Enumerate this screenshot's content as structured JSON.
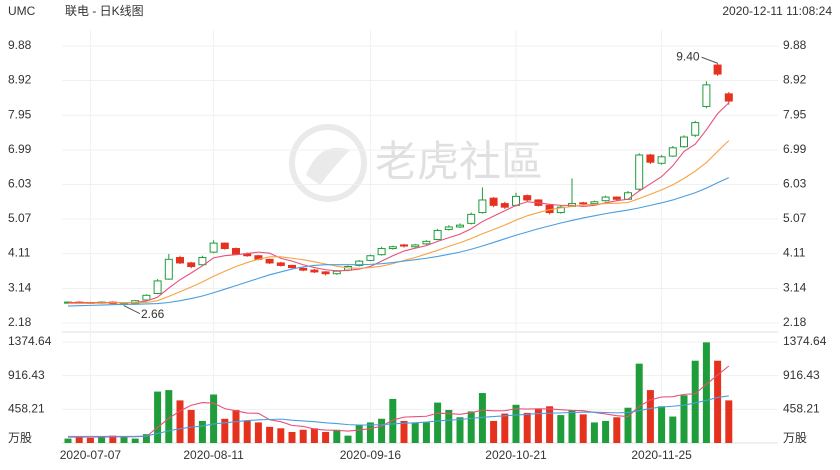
{
  "chart_data": {
    "type": "candlestick",
    "symbol": "UMC",
    "title": "联电 - 日K线图",
    "timestamp": "2020-12-11 11:08:24",
    "watermark": "老虎社區",
    "grid": true,
    "up_color": "#1f9d3a",
    "down_color": "#e5321f",
    "categories": [
      null,
      null,
      "2020-07-07",
      null,
      null,
      null,
      null,
      null,
      null,
      null,
      null,
      null,
      null,
      "2020-08-11",
      null,
      null,
      null,
      null,
      null,
      null,
      null,
      null,
      null,
      null,
      null,
      null,
      null,
      "2020-09-16",
      null,
      null,
      null,
      null,
      null,
      null,
      null,
      null,
      null,
      null,
      null,
      null,
      "2020-10-21",
      null,
      null,
      null,
      null,
      null,
      null,
      null,
      null,
      null,
      null,
      null,
      null,
      "2020-11-25",
      null,
      null,
      null,
      null,
      null,
      null
    ],
    "open": [
      2.74,
      2.76,
      2.75,
      2.74,
      2.76,
      2.7,
      2.72,
      2.82,
      3.0,
      3.4,
      4.0,
      3.85,
      3.8,
      4.15,
      4.4,
      4.25,
      4.1,
      4.05,
      3.95,
      3.85,
      3.78,
      3.7,
      3.65,
      3.6,
      3.55,
      3.65,
      3.78,
      3.92,
      4.08,
      4.25,
      4.35,
      4.3,
      4.38,
      4.5,
      4.78,
      4.85,
      4.95,
      5.25,
      5.65,
      5.5,
      5.45,
      5.72,
      5.6,
      5.45,
      5.25,
      5.42,
      5.52,
      5.5,
      5.58,
      5.68,
      5.62,
      5.9,
      6.85,
      6.62,
      6.82,
      7.08,
      7.4,
      8.2,
      9.35,
      8.55
    ],
    "high": [
      2.78,
      2.78,
      2.77,
      2.78,
      2.78,
      2.74,
      2.82,
      2.98,
      3.4,
      4.1,
      4.05,
      3.88,
      4.05,
      4.48,
      4.42,
      4.28,
      4.14,
      4.07,
      3.97,
      3.88,
      3.8,
      3.72,
      3.68,
      3.62,
      3.65,
      3.78,
      3.93,
      4.08,
      4.3,
      4.33,
      4.38,
      4.38,
      4.48,
      4.8,
      4.9,
      4.95,
      5.25,
      5.95,
      5.68,
      5.55,
      5.8,
      5.75,
      5.62,
      5.48,
      5.45,
      6.2,
      5.55,
      5.58,
      5.72,
      5.7,
      5.85,
      6.9,
      6.88,
      6.85,
      7.1,
      7.4,
      7.8,
      8.9,
      9.4,
      8.6
    ],
    "low": [
      2.72,
      2.73,
      2.72,
      2.72,
      2.7,
      2.66,
      2.7,
      2.8,
      2.98,
      3.38,
      3.82,
      3.7,
      3.78,
      4.12,
      4.22,
      4.08,
      4.02,
      3.92,
      3.82,
      3.75,
      3.7,
      3.62,
      3.57,
      3.5,
      3.52,
      3.62,
      3.75,
      3.9,
      4.05,
      4.22,
      4.28,
      4.28,
      4.35,
      4.48,
      4.75,
      4.82,
      4.92,
      5.22,
      5.4,
      5.35,
      5.42,
      5.55,
      5.42,
      5.2,
      5.22,
      5.4,
      5.45,
      5.48,
      5.55,
      5.58,
      5.6,
      5.85,
      6.6,
      6.58,
      6.8,
      7.05,
      7.35,
      8.15,
      9.05,
      8.25
    ],
    "close": [
      2.76,
      2.75,
      2.74,
      2.76,
      2.72,
      2.72,
      2.8,
      2.95,
      3.35,
      3.95,
      3.85,
      3.75,
      4.0,
      4.4,
      4.25,
      4.1,
      4.05,
      3.95,
      3.85,
      3.78,
      3.72,
      3.65,
      3.6,
      3.55,
      3.62,
      3.75,
      3.9,
      4.05,
      4.25,
      4.3,
      4.32,
      4.35,
      4.45,
      4.75,
      4.85,
      4.9,
      5.2,
      5.6,
      5.45,
      5.4,
      5.7,
      5.6,
      5.45,
      5.25,
      5.4,
      5.5,
      5.5,
      5.55,
      5.68,
      5.62,
      5.8,
      6.85,
      6.65,
      6.8,
      7.05,
      7.35,
      7.75,
      8.8,
      9.1,
      8.35
    ],
    "ma_lines": [
      {
        "color": "#e8507a",
        "values": [
          2.75,
          2.75,
          2.75,
          2.75,
          2.75,
          2.74,
          2.75,
          2.79,
          2.9,
          3.15,
          3.38,
          3.57,
          3.77,
          3.99,
          4.05,
          4.08,
          4.11,
          4.15,
          4.12,
          3.98,
          3.9,
          3.8,
          3.72,
          3.66,
          3.63,
          3.64,
          3.68,
          3.75,
          3.9,
          4.05,
          4.18,
          4.26,
          4.33,
          4.45,
          4.55,
          4.65,
          4.8,
          5.0,
          5.15,
          5.3,
          5.45,
          5.55,
          5.52,
          5.48,
          5.45,
          5.45,
          5.42,
          5.45,
          5.52,
          5.58,
          5.62,
          5.85,
          6.05,
          6.25,
          6.55,
          6.95,
          7.15,
          7.55,
          8.0,
          8.3
        ]
      },
      {
        "color": "#f5a442",
        "values": [
          2.72,
          2.72,
          2.73,
          2.73,
          2.74,
          2.74,
          2.74,
          2.75,
          2.8,
          2.92,
          3.05,
          3.18,
          3.32,
          3.48,
          3.62,
          3.75,
          3.86,
          3.95,
          4.02,
          4.02,
          3.98,
          3.94,
          3.88,
          3.82,
          3.76,
          3.71,
          3.7,
          3.72,
          3.76,
          3.83,
          3.92,
          4.0,
          4.1,
          4.2,
          4.31,
          4.41,
          4.53,
          4.66,
          4.78,
          4.9,
          5.04,
          5.16,
          5.25,
          5.33,
          5.38,
          5.42,
          5.46,
          5.48,
          5.5,
          5.51,
          5.53,
          5.64,
          5.76,
          5.88,
          6.02,
          6.2,
          6.4,
          6.64,
          6.95,
          7.25
        ]
      },
      {
        "color": "#4a9ee0",
        "values": [
          2.65,
          2.66,
          2.67,
          2.68,
          2.69,
          2.7,
          2.7,
          2.71,
          2.72,
          2.75,
          2.8,
          2.86,
          2.93,
          3.02,
          3.12,
          3.22,
          3.32,
          3.42,
          3.52,
          3.6,
          3.68,
          3.74,
          3.78,
          3.8,
          3.8,
          3.8,
          3.8,
          3.81,
          3.83,
          3.86,
          3.9,
          3.94,
          3.98,
          4.03,
          4.09,
          4.15,
          4.23,
          4.32,
          4.42,
          4.52,
          4.62,
          4.71,
          4.8,
          4.88,
          4.96,
          5.03,
          5.1,
          5.16,
          5.22,
          5.27,
          5.32,
          5.38,
          5.45,
          5.52,
          5.6,
          5.7,
          5.8,
          5.93,
          6.08,
          6.22
        ]
      }
    ],
    "ylim": [
      2.18,
      9.88
    ],
    "yticks": [
      2.18,
      3.14,
      4.11,
      5.07,
      6.03,
      6.99,
      7.95,
      8.92,
      9.88
    ],
    "max_label": {
      "value": 9.4,
      "label": "9.40"
    },
    "min_label": {
      "value": 2.66,
      "label": "2.66"
    },
    "volume": {
      "unit": "万股",
      "values": [
        60,
        80,
        70,
        90,
        100,
        80,
        60,
        120,
        700,
        720,
        580,
        450,
        300,
        660,
        330,
        450,
        300,
        280,
        220,
        200,
        150,
        180,
        200,
        150,
        180,
        100,
        250,
        280,
        330,
        600,
        300,
        280,
        280,
        550,
        450,
        350,
        430,
        680,
        300,
        400,
        520,
        410,
        470,
        500,
        380,
        450,
        390,
        280,
        300,
        350,
        480,
        1080,
        720,
        500,
        360,
        650,
        1120,
        1370,
        1120,
        580
      ],
      "ylim": [
        0,
        1374.64
      ],
      "yticks": [
        458.21,
        916.43,
        1374.64
      ],
      "ma_lines": [
        {
          "color": "#e8507a",
          "values": [
            80,
            80,
            80,
            80,
            84,
            84,
            86,
            90,
            212,
            336,
            436,
            514,
            550,
            542,
            468,
            438,
            408,
            404,
            316,
            290,
            240,
            226,
            190,
            176,
            172,
            162,
            176,
            196,
            228,
            312,
            352,
            358,
            364,
            406,
            400,
            390,
            412,
            448,
            438,
            440,
            466,
            462,
            466,
            464,
            454,
            444,
            440,
            416,
            396,
            372,
            360,
            500,
            586,
            626,
            630,
            662,
            670,
            800,
            924,
            1048
          ]
        },
        {
          "color": "#4a9ee0",
          "values": [
            90,
            90,
            90,
            90,
            90,
            90,
            90,
            95,
            130,
            165,
            195,
            215,
            230,
            260,
            275,
            290,
            305,
            315,
            320,
            325,
            310,
            300,
            290,
            275,
            265,
            250,
            245,
            245,
            250,
            260,
            270,
            275,
            285,
            300,
            310,
            320,
            335,
            350,
            360,
            370,
            380,
            390,
            400,
            405,
            410,
            415,
            420,
            420,
            415,
            410,
            415,
            440,
            470,
            490,
            500,
            515,
            545,
            580,
            620,
            640
          ]
        }
      ]
    }
  }
}
